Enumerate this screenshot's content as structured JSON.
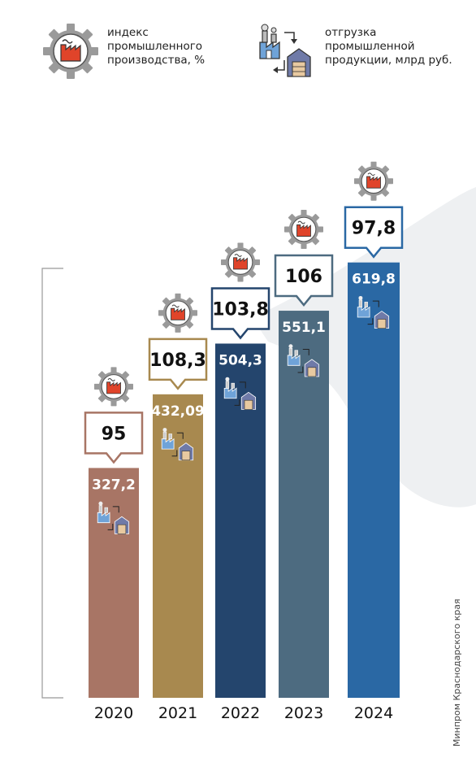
{
  "legend": {
    "index_lines": [
      "индекс",
      "промышленного",
      "производства, %"
    ],
    "shipment_lines": [
      "отгрузка",
      "промышленной",
      "продукции, млрд руб."
    ],
    "index_icon": "factory-gear-icon",
    "shipment_icon": "factory-warehouse-icon"
  },
  "source": "Минпром Краснодарского края",
  "chart_data": {
    "type": "bar",
    "categories": [
      "2020",
      "2021",
      "2022",
      "2023",
      "2024"
    ],
    "series": [
      {
        "values": [
          327.2,
          432.09,
          504.3,
          551.1,
          619.8
        ],
        "labels": [
          "327,2",
          "432,09",
          "504,3",
          "551,1",
          "619,8"
        ]
      },
      {
        "values": [
          95,
          108.3,
          103.8,
          106,
          97.8
        ],
        "labels": [
          "95",
          "108,3",
          "103,8",
          "106",
          "97,8"
        ]
      }
    ],
    "colors": [
      "#a87565",
      "#a8894f",
      "#24456d",
      "#4d6b80",
      "#2a68a4"
    ],
    "ylim": [
      0,
      660
    ],
    "grid": false
  }
}
